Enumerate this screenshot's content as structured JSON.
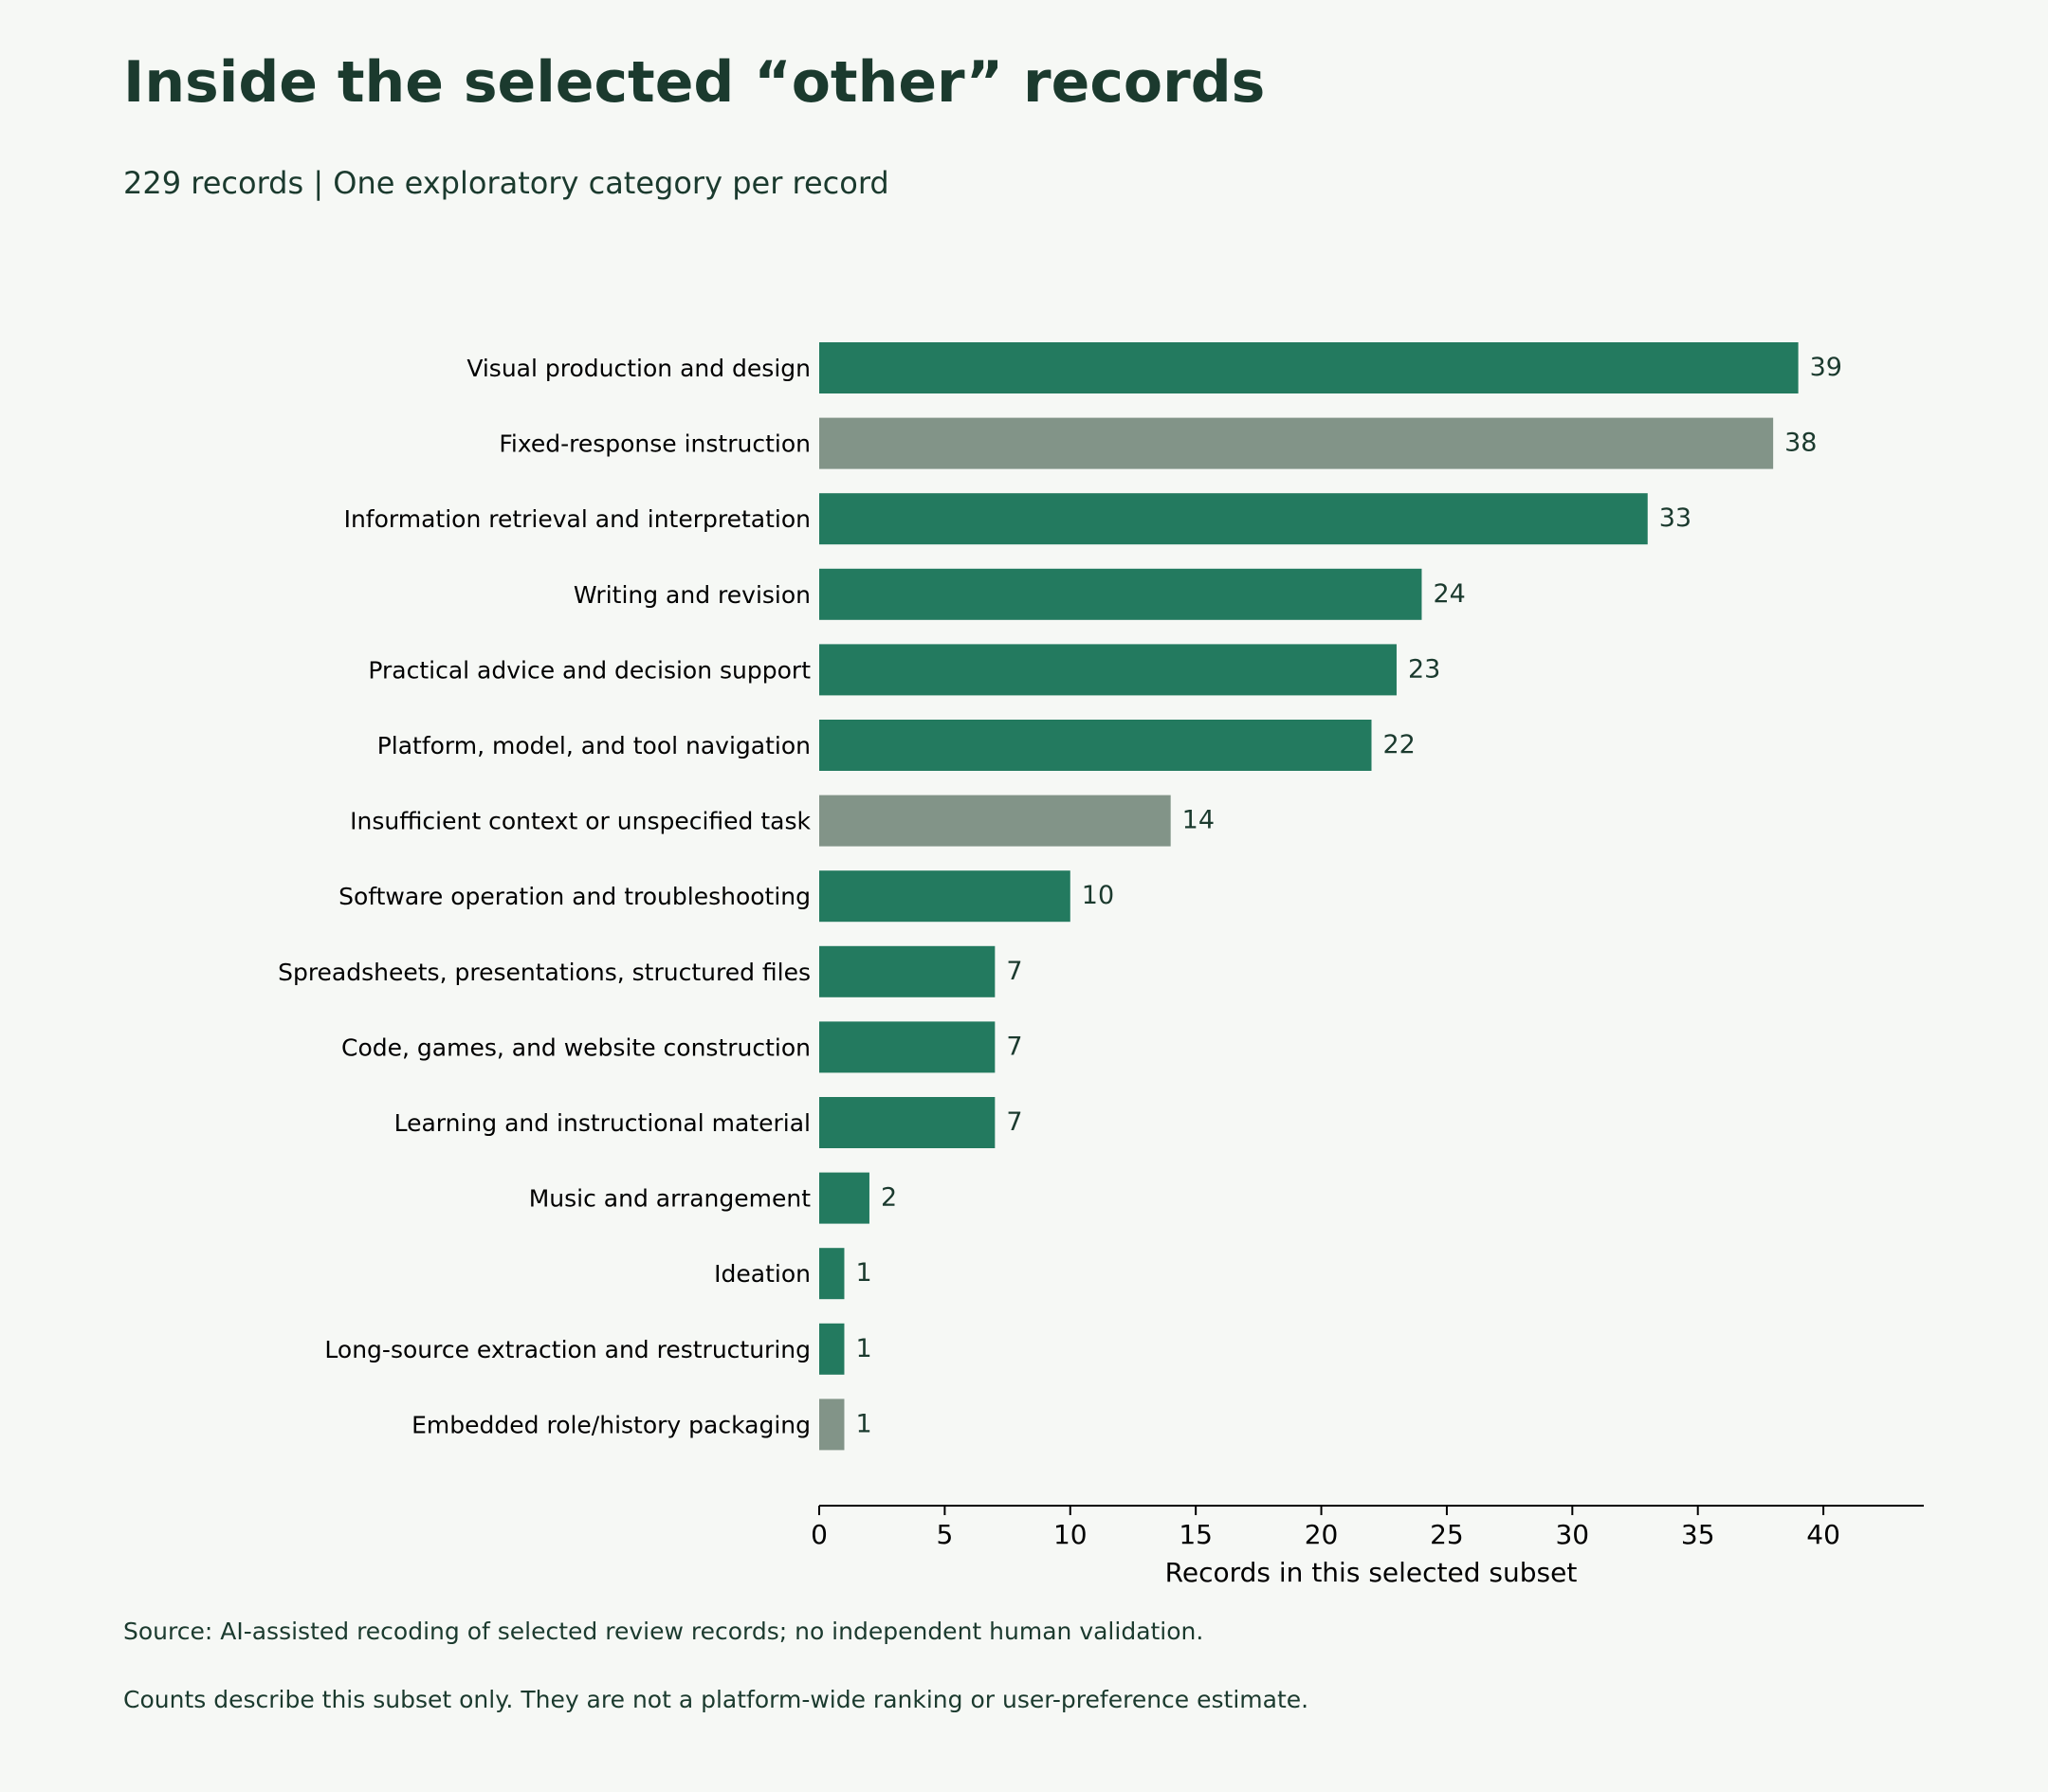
{
  "header": {
    "title": "Inside the selected “other” records",
    "subtitle": "229 records | One exploratory category per record"
  },
  "footnotes": [
    "Source: AI-assisted recoding of selected review records; no independent human validation.",
    "Counts describe this subset only. They are not a platform-wide ranking or user-preference estimate."
  ],
  "colors": {
    "primary_bar": "#237a5f",
    "muted_bar": "#829488",
    "text": "#1b3a2e"
  },
  "chart_data": {
    "type": "bar",
    "orientation": "horizontal",
    "title": "Inside the selected “other” records",
    "subtitle": "229 records | One exploratory category per record",
    "xlabel": "Records in this selected subset",
    "ylabel": "",
    "xlim": [
      0,
      44
    ],
    "xticks": [
      0,
      5,
      10,
      15,
      20,
      25,
      30,
      35,
      40
    ],
    "grid": false,
    "categories": [
      "Visual production and design",
      "Fixed-response instruction",
      "Information retrieval and interpretation",
      "Writing and revision",
      "Practical advice and decision support",
      "Platform, model, and tool navigation",
      "Insufficient context or unspecified task",
      "Software operation and troubleshooting",
      "Spreadsheets, presentations, structured files",
      "Code, games, and website construction",
      "Learning and instructional material",
      "Music and arrangement",
      "Ideation",
      "Long-source extraction and restructuring",
      "Embedded role/history packaging"
    ],
    "values": [
      39,
      38,
      33,
      24,
      23,
      22,
      14,
      10,
      7,
      7,
      7,
      2,
      1,
      1,
      1
    ],
    "muted": [
      false,
      true,
      false,
      false,
      false,
      false,
      true,
      false,
      false,
      false,
      false,
      false,
      false,
      false,
      true
    ]
  }
}
